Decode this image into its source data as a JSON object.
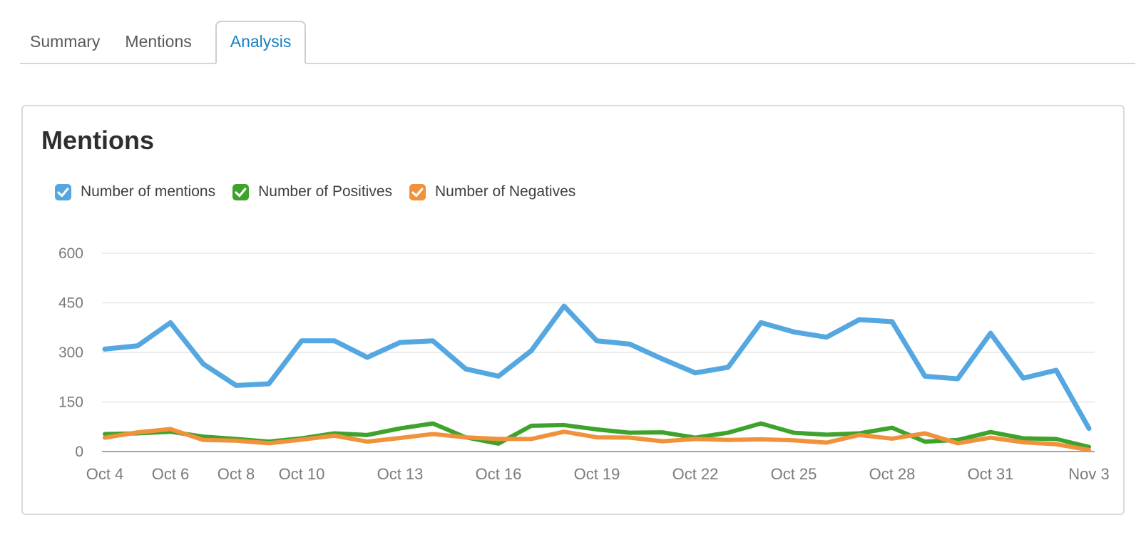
{
  "tabs": {
    "items": [
      {
        "label": "Summary",
        "active": false
      },
      {
        "label": "Mentions",
        "active": false
      },
      {
        "label": "Analysis",
        "active": true
      }
    ],
    "active_color": "#1b7ec2"
  },
  "card": {
    "title": "Mentions"
  },
  "legend": {
    "items": [
      {
        "label": "Number of mentions",
        "color": "#55a7e1",
        "checked": true
      },
      {
        "label": "Number of Positives",
        "color": "#3ea32c",
        "checked": true
      },
      {
        "label": "Number of Negatives",
        "color": "#f0913b",
        "checked": true
      }
    ]
  },
  "chart_data": {
    "type": "line",
    "title": "Mentions",
    "x": [
      "Oct 4",
      "Oct 5",
      "Oct 6",
      "Oct 7",
      "Oct 8",
      "Oct 9",
      "Oct 10",
      "Oct 11",
      "Oct 12",
      "Oct 13",
      "Oct 14",
      "Oct 15",
      "Oct 16",
      "Oct 17",
      "Oct 18",
      "Oct 19",
      "Oct 20",
      "Oct 21",
      "Oct 22",
      "Oct 23",
      "Oct 24",
      "Oct 25",
      "Oct 26",
      "Oct 27",
      "Oct 28",
      "Oct 29",
      "Oct 30",
      "Oct 31",
      "Nov 1",
      "Nov 2",
      "Nov 3"
    ],
    "x_ticks": [
      {
        "label": "Oct 4",
        "index": 0
      },
      {
        "label": "Oct 6",
        "index": 2
      },
      {
        "label": "Oct 8",
        "index": 4
      },
      {
        "label": "Oct 10",
        "index": 6
      },
      {
        "label": "Oct 13",
        "index": 9
      },
      {
        "label": "Oct 16",
        "index": 12
      },
      {
        "label": "Oct 19",
        "index": 15
      },
      {
        "label": "Oct 22",
        "index": 18
      },
      {
        "label": "Oct 25",
        "index": 21
      },
      {
        "label": "Oct 28",
        "index": 24
      },
      {
        "label": "Oct 31",
        "index": 27
      },
      {
        "label": "Nov 3",
        "index": 30
      }
    ],
    "series": [
      {
        "name": "Number of mentions",
        "color": "#55a7e1",
        "values": [
          310,
          320,
          390,
          265,
          200,
          205,
          335,
          335,
          285,
          330,
          335,
          250,
          228,
          305,
          440,
          335,
          325,
          280,
          238,
          255,
          390,
          362,
          346,
          399,
          393,
          228,
          220,
          358,
          222,
          246,
          70
        ]
      },
      {
        "name": "Number of Positives",
        "color": "#3ea32c",
        "values": [
          53,
          55,
          60,
          45,
          38,
          30,
          40,
          55,
          50,
          70,
          85,
          43,
          24,
          78,
          80,
          67,
          57,
          58,
          42,
          57,
          85,
          57,
          51,
          55,
          72,
          30,
          35,
          59,
          40,
          38,
          14
        ]
      },
      {
        "name": "Number of Negatives",
        "color": "#f0913b",
        "values": [
          42,
          58,
          68,
          35,
          33,
          25,
          36,
          48,
          30,
          41,
          53,
          43,
          38,
          38,
          60,
          43,
          42,
          31,
          38,
          35,
          37,
          34,
          27,
          50,
          39,
          55,
          25,
          42,
          28,
          22,
          5
        ]
      }
    ],
    "ylim": [
      0,
      600
    ],
    "yticks": [
      0,
      150,
      300,
      450,
      600
    ],
    "grid": "horizontal",
    "legend_position": "top",
    "axis_text_color": "#7a7a7a",
    "grid_color": "#e7e7e7",
    "zero_line_color": "#a3a3a3"
  }
}
